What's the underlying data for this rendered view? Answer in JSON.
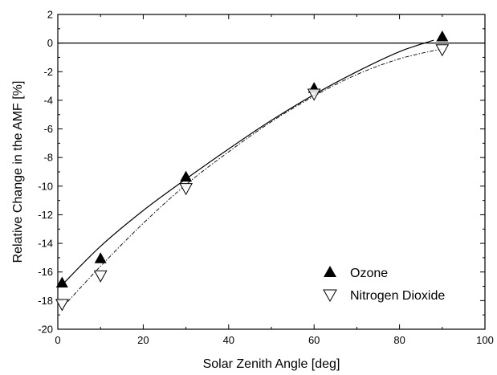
{
  "chart_data": {
    "type": "scatter",
    "title": "",
    "xlabel": "Solar Zenith Angle  [deg]",
    "ylabel": "Relative Change in the AMF  [%]",
    "xlim": [
      0,
      100
    ],
    "ylim": [
      -20,
      2
    ],
    "xticks": [
      0,
      20,
      40,
      60,
      80,
      100
    ],
    "yticks": [
      -20,
      -18,
      -16,
      -14,
      -12,
      -10,
      -8,
      -6,
      -4,
      -2,
      0,
      2
    ],
    "legend_position": "lower-right",
    "zero_line": true,
    "grid": false,
    "series": [
      {
        "name": "Ozone",
        "marker": "filled-triangle-up",
        "line_style": "solid",
        "color": "#000000",
        "points": [
          {
            "x": 1,
            "y": -16.8
          },
          {
            "x": 10,
            "y": -15.1
          },
          {
            "x": 30,
            "y": -9.4
          },
          {
            "x": 60,
            "y": -3.2
          },
          {
            "x": 90,
            "y": 0.4
          }
        ],
        "fit": {
          "x": [
            1,
            10,
            20,
            30,
            40,
            50,
            60,
            70,
            80,
            88
          ],
          "y": [
            -16.9,
            -14.2,
            -11.7,
            -9.5,
            -7.4,
            -5.4,
            -3.6,
            -2.0,
            -0.6,
            0.2
          ]
        }
      },
      {
        "name": "Nitrogen Dioxide",
        "marker": "open-triangle-down",
        "line_style": "dash-dot",
        "color": "#000000",
        "points": [
          {
            "x": 1,
            "y": -18.2
          },
          {
            "x": 10,
            "y": -16.2
          },
          {
            "x": 30,
            "y": -10.1
          },
          {
            "x": 60,
            "y": -3.5
          },
          {
            "x": 90,
            "y": -0.4
          }
        ],
        "fit": {
          "x": [
            1,
            10,
            20,
            30,
            40,
            50,
            60,
            70,
            80,
            90
          ],
          "y": [
            -18.5,
            -15.6,
            -12.6,
            -9.9,
            -7.6,
            -5.5,
            -3.7,
            -2.2,
            -1.1,
            -0.4
          ]
        }
      }
    ]
  }
}
